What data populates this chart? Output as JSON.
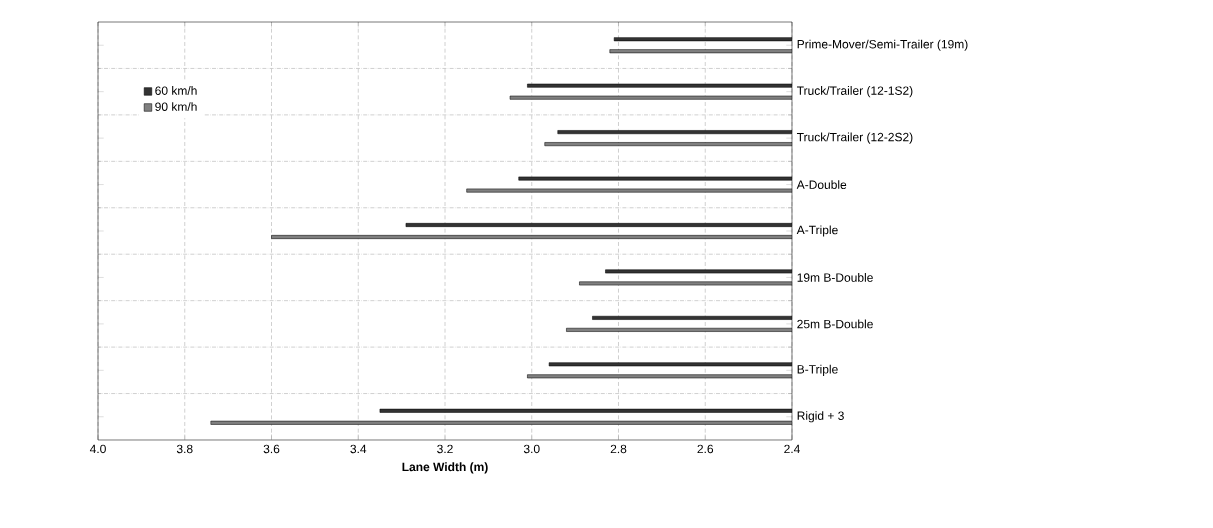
{
  "chart_data": {
    "type": "bar",
    "orientation": "horizontal",
    "xlabel": "Lane Width (m)",
    "categories": [
      "Prime-Mover/Semi-Trailer (19m)",
      "Truck/Trailer (12-1S2)",
      "Truck/Trailer (12-2S2)",
      "A-Double",
      "A-Triple",
      "19m B-Double",
      "25m B-Double",
      "B-Triple",
      "Rigid + 3"
    ],
    "series": [
      {
        "name": "60 km/h",
        "color": "#333333",
        "values": [
          2.81,
          3.01,
          2.94,
          3.03,
          3.29,
          2.83,
          2.86,
          2.96,
          3.35
        ]
      },
      {
        "name": "90 km/h",
        "color": "#808080",
        "values": [
          2.82,
          3.05,
          2.97,
          3.15,
          3.6,
          2.89,
          2.92,
          3.01,
          3.74
        ]
      }
    ],
    "xlim": [
      4.0,
      2.4
    ],
    "xticks": [
      {
        "value": 4.0,
        "label": "4.0"
      },
      3.8,
      3.6,
      3.4,
      3.2,
      {
        "value": 3.0,
        "label": "3.0"
      },
      2.8,
      2.6,
      2.4
    ],
    "grid": true,
    "legend": "top left"
  }
}
